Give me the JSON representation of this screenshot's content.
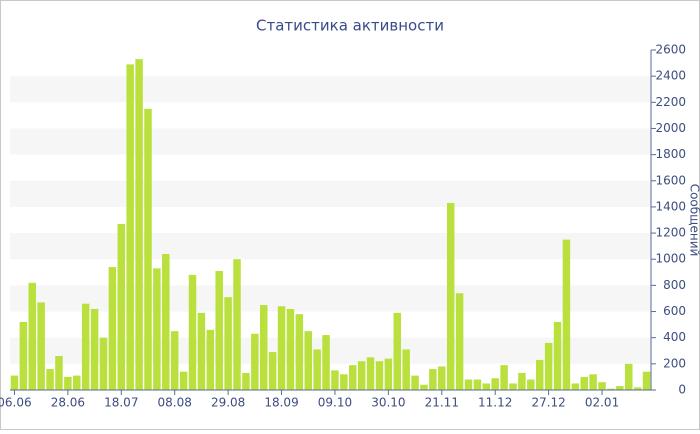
{
  "chart_data": {
    "type": "bar",
    "title": "Статистика активности",
    "y_label": "Сообщений",
    "categories": [
      "06.06",
      null,
      null,
      null,
      null,
      null,
      "28.06",
      null,
      null,
      null,
      null,
      null,
      "18.07",
      null,
      null,
      null,
      null,
      null,
      "08.08",
      null,
      null,
      null,
      null,
      null,
      "29.08",
      null,
      null,
      null,
      null,
      null,
      "18.09",
      null,
      null,
      null,
      null,
      null,
      "09.10",
      null,
      null,
      null,
      null,
      null,
      "30.10",
      null,
      null,
      null,
      null,
      null,
      "21.11",
      null,
      null,
      null,
      null,
      null,
      "11.12",
      null,
      null,
      null,
      null,
      null,
      "27.12",
      null,
      null,
      null,
      null,
      null,
      "02.01",
      null,
      null,
      null,
      null,
      null
    ],
    "values": [
      110,
      520,
      820,
      670,
      160,
      260,
      100,
      110,
      660,
      620,
      400,
      940,
      1270,
      2490,
      2530,
      2150,
      930,
      1040,
      450,
      140,
      880,
      590,
      460,
      910,
      710,
      1000,
      130,
      430,
      650,
      290,
      640,
      620,
      580,
      450,
      310,
      420,
      150,
      120,
      190,
      220,
      250,
      220,
      240,
      590,
      310,
      110,
      40,
      160,
      180,
      1430,
      740,
      80,
      80,
      50,
      90,
      190,
      50,
      130,
      80,
      230,
      360,
      520,
      1150,
      50,
      100,
      120,
      60,
      10,
      30,
      200,
      20,
      140
    ],
    "color": "#b9e03c",
    "ylim": [
      0,
      2600
    ],
    "yticks": [
      0,
      200,
      400,
      600,
      800,
      1000,
      1200,
      1400,
      1600,
      1800,
      2000,
      2200,
      2400,
      2600
    ],
    "grid": true
  }
}
